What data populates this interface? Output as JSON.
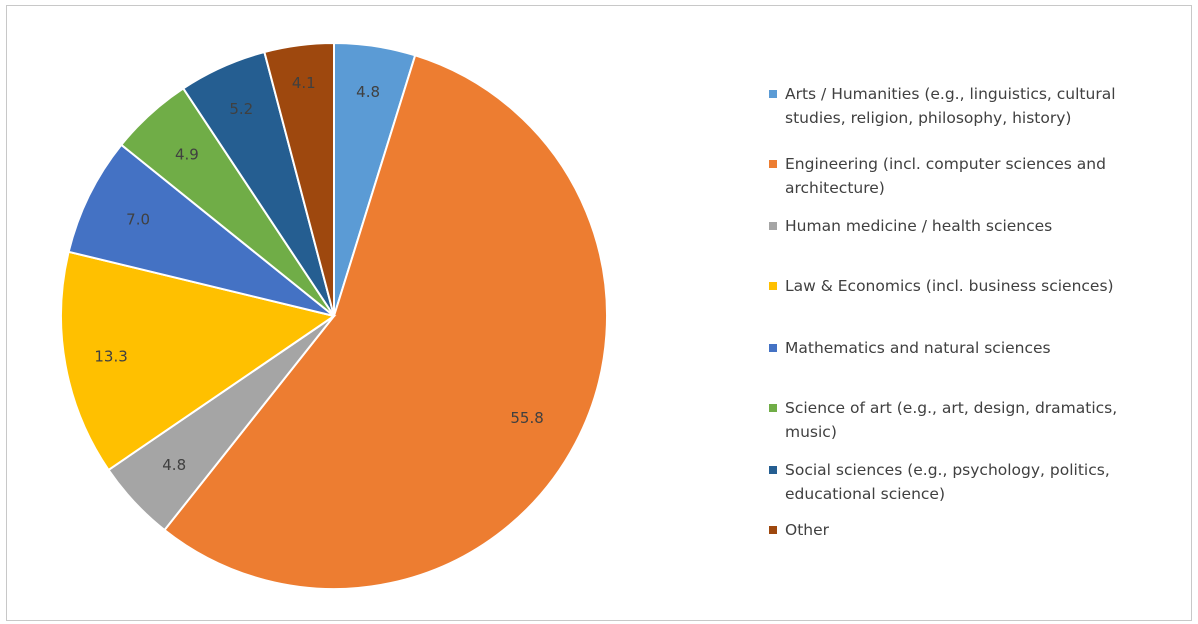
{
  "chart_data": {
    "type": "pie",
    "title": "",
    "legend_position": "right",
    "start_angle_deg": 0,
    "slices": [
      {
        "name": "Arts / Humanities (e.g., linguistics, cultural\nstudies, religion, philosophy, history)",
        "label": "4.8",
        "value": 4.8,
        "color": "#5B9BD5"
      },
      {
        "name": "Engineering (incl. computer sciences and\narchitecture)",
        "label": "55.8",
        "value": 55.8,
        "color": "#ED7D31"
      },
      {
        "name": "Human medicine / health sciences",
        "label": "4.8",
        "value": 4.8,
        "color": "#A5A5A5"
      },
      {
        "name": "Law & Economics (incl. business sciences)",
        "label": "13.3",
        "value": 13.3,
        "color": "#FFC000"
      },
      {
        "name": "Mathematics and natural sciences",
        "label": "7.0",
        "value": 7.0,
        "color": "#4472C4"
      },
      {
        "name": "Science of art (e.g., art, design, dramatics,\nmusic)",
        "label": "4.9",
        "value": 4.9,
        "color": "#70AD47"
      },
      {
        "name": "Social sciences (e.g., psychology, politics,\neducational science)",
        "label": "5.2",
        "value": 5.2,
        "color": "#255E91"
      },
      {
        "name": "Other",
        "label": "4.1",
        "value": 4.1,
        "color": "#9E480E"
      }
    ]
  }
}
